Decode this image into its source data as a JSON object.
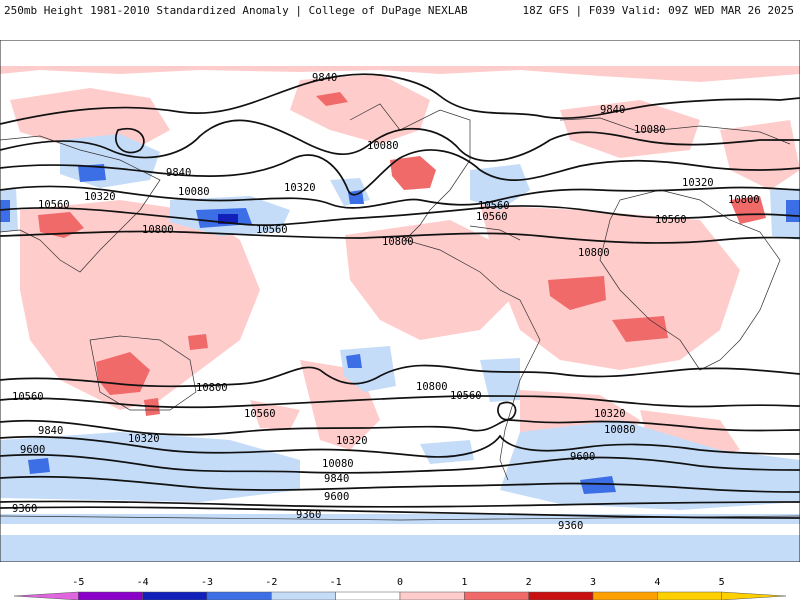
{
  "header": {
    "left": "250mb Height 1981-2010 Standardized Anomaly | College of DuPage NEXLAB",
    "right": "18Z GFS | F039 Valid: 09Z WED MAR 26 2025"
  },
  "colorbar": {
    "ticks": [
      "-5",
      "-4",
      "-3",
      "-2",
      "-1",
      "0",
      "1",
      "2",
      "3",
      "4",
      "5"
    ],
    "colors": [
      "#e066e0",
      "#8a00c8",
      "#1020b8",
      "#3c6ee6",
      "#c4dcf8",
      "#ffffff",
      "#ffcccc",
      "#f06a6a",
      "#c81010",
      "#ffa000",
      "#ffd000"
    ]
  },
  "contour_labels": [
    "9840",
    "9840",
    "10080",
    "10080",
    "10320",
    "10320",
    "10320",
    "10560",
    "10560",
    "10560",
    "10800",
    "10800",
    "10800",
    "10080",
    "10560",
    "10800",
    "10560",
    "9840",
    "9600",
    "10800",
    "10560",
    "10560",
    "10320",
    "10320",
    "10080",
    "9840",
    "9600",
    "9360",
    "9360",
    "10800",
    "10560",
    "10320",
    "10080",
    "9840",
    "9600",
    "9360"
  ]
}
